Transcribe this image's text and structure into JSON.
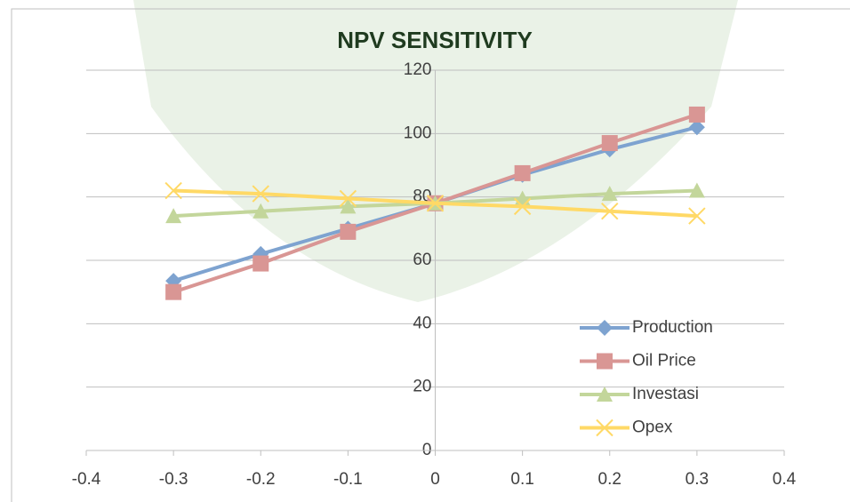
{
  "chart_data": {
    "type": "line",
    "title": "NPV SENSITIVITY",
    "x": [
      -0.3,
      -0.2,
      -0.1,
      0,
      0.1,
      0.2,
      0.3
    ],
    "series": [
      {
        "name": "Production",
        "color": "#7ea3d0",
        "marker": "diamond",
        "values": [
          53.5,
          62,
          70,
          78,
          87,
          95,
          102
        ]
      },
      {
        "name": "Oil Price",
        "color": "#d99694",
        "marker": "square",
        "values": [
          50,
          59,
          69,
          78,
          87.5,
          97,
          106
        ]
      },
      {
        "name": "Investasi",
        "color": "#c3d69b",
        "marker": "triangle",
        "values": [
          74,
          75.5,
          77,
          78,
          79.5,
          81,
          82
        ]
      },
      {
        "name": "Opex",
        "color": "#ffd966",
        "marker": "x",
        "values": [
          82,
          81,
          79.5,
          78,
          77,
          75.5,
          74
        ]
      }
    ],
    "xlim": [
      -0.4,
      0.4
    ],
    "xticks": [
      -0.4,
      -0.3,
      -0.2,
      -0.1,
      0,
      0.1,
      0.2,
      0.3,
      0.4
    ],
    "ylim": [
      0,
      120
    ],
    "yticks": [
      0,
      20,
      40,
      60,
      80,
      100,
      120
    ],
    "grid": true,
    "legend": "bottom-right"
  }
}
